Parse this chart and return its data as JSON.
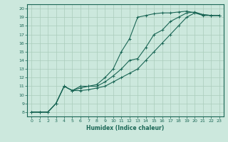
{
  "xlabel": "Humidex (Indice chaleur)",
  "bg_color": "#cce8dd",
  "grid_color": "#aaccbb",
  "line_color": "#1a6655",
  "xlim": [
    -0.5,
    23.5
  ],
  "ylim": [
    7.5,
    20.5
  ],
  "xticks": [
    0,
    1,
    2,
    3,
    4,
    5,
    6,
    7,
    8,
    9,
    10,
    11,
    12,
    13,
    14,
    15,
    16,
    17,
    18,
    19,
    20,
    21,
    22,
    23
  ],
  "yticks": [
    8,
    9,
    10,
    11,
    12,
    13,
    14,
    15,
    16,
    17,
    18,
    19,
    20
  ],
  "line1_x": [
    0,
    1,
    2,
    3,
    4,
    5,
    6,
    7,
    8,
    9,
    10,
    11,
    12,
    13,
    14,
    15,
    16,
    17,
    18,
    19,
    20,
    21,
    22,
    23
  ],
  "line1_y": [
    8,
    8,
    8,
    9,
    11,
    10.5,
    11,
    11,
    11.2,
    12,
    13,
    15,
    16.5,
    19,
    19.2,
    19.4,
    19.5,
    19.5,
    19.6,
    19.7,
    19.5,
    19.3,
    19.2,
    19.2
  ],
  "line2_x": [
    0,
    1,
    2,
    3,
    4,
    5,
    6,
    7,
    8,
    9,
    10,
    11,
    12,
    13,
    14,
    15,
    16,
    17,
    18,
    19,
    20,
    21,
    22,
    23
  ],
  "line2_y": [
    8,
    8,
    8,
    9,
    11,
    10.5,
    10.8,
    11,
    11,
    11.5,
    12.2,
    13,
    14,
    14.2,
    15.5,
    17,
    17.5,
    18.5,
    19,
    19.5,
    19.6,
    19.3,
    19.2,
    19.2
  ],
  "line3_x": [
    0,
    1,
    2,
    3,
    4,
    5,
    6,
    7,
    8,
    9,
    10,
    11,
    12,
    13,
    14,
    15,
    16,
    17,
    18,
    19,
    20,
    21,
    22,
    23
  ],
  "line3_y": [
    8,
    8,
    8,
    9,
    11,
    10.5,
    10.5,
    10.6,
    10.8,
    11,
    11.5,
    12,
    12.5,
    13,
    14,
    15,
    16,
    17,
    18,
    19,
    19.5,
    19.2,
    19.2,
    19.2
  ]
}
